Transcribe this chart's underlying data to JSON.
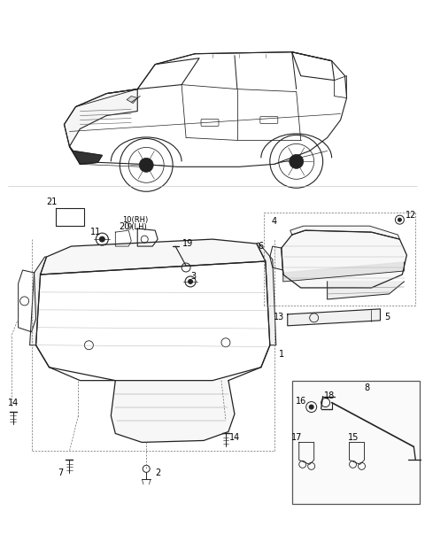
{
  "bg_color": "#ffffff",
  "line_color": "#222222",
  "gray": "#888888",
  "light_gray": "#cccccc",
  "fs": 7,
  "fs_small": 6
}
